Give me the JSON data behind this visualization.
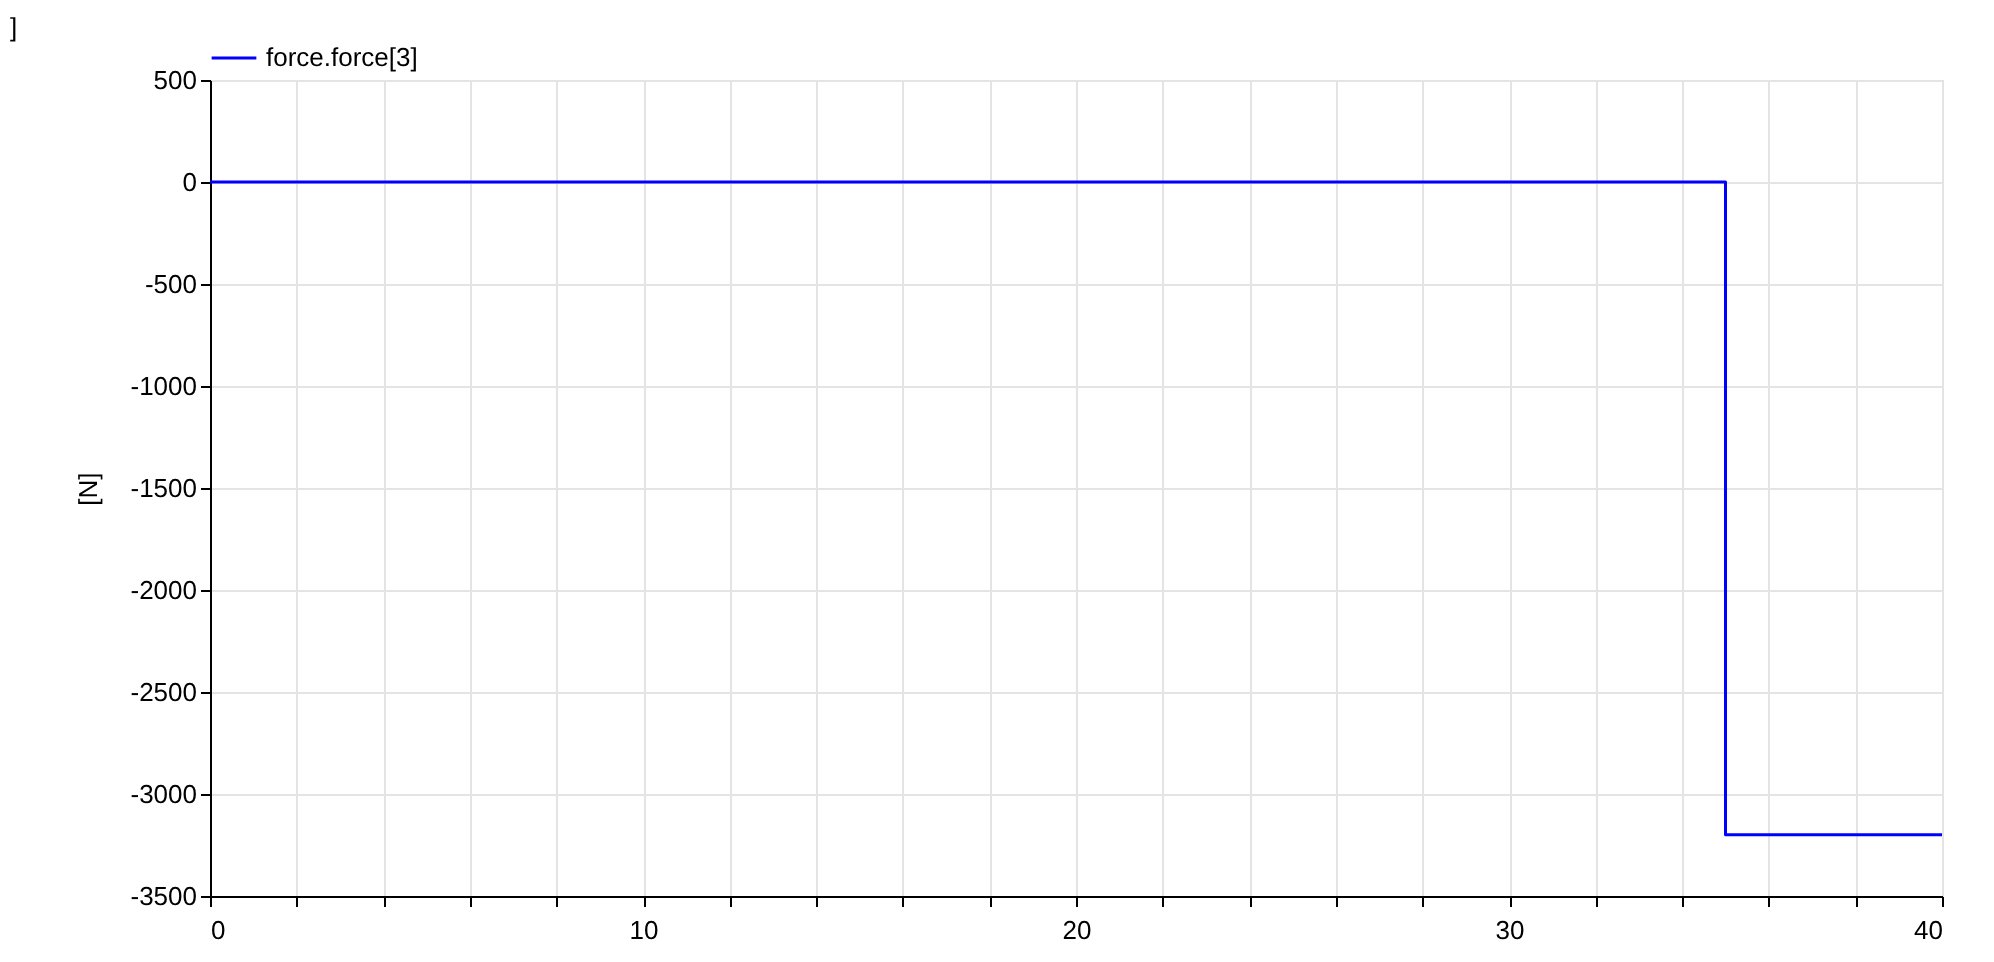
{
  "chart_data": {
    "type": "line",
    "ylabel": "[N]",
    "annotations": [
      "]"
    ],
    "x": [
      0,
      35,
      35,
      40
    ],
    "series": [
      {
        "name": "force.force[3]",
        "color": "#0000ff",
        "values": [
          0,
          0,
          -3200,
          -3200
        ]
      }
    ],
    "xlim": [
      0,
      40
    ],
    "xticks": [
      0,
      {
        "value": 2,
        "label": null
      },
      {
        "value": 4,
        "label": null
      },
      {
        "value": 6,
        "label": null
      },
      {
        "value": 8,
        "label": null
      },
      10,
      {
        "value": 12,
        "label": null
      },
      {
        "value": 14,
        "label": null
      },
      {
        "value": 16,
        "label": null
      },
      {
        "value": 18,
        "label": null
      },
      20,
      {
        "value": 22,
        "label": null
      },
      {
        "value": 24,
        "label": null
      },
      {
        "value": 26,
        "label": null
      },
      {
        "value": 28,
        "label": null
      },
      30,
      {
        "value": 32,
        "label": null
      },
      {
        "value": 34,
        "label": null
      },
      {
        "value": 36,
        "label": null
      },
      {
        "value": 38,
        "label": null
      },
      40
    ],
    "ylim": [
      -3500,
      500
    ],
    "yticks": [
      -3500,
      -3000,
      -2500,
      -2000,
      -1500,
      -1000,
      -500,
      0,
      500
    ],
    "grid": true,
    "legend": "top left",
    "marker": "none",
    "line_style": "solid"
  }
}
